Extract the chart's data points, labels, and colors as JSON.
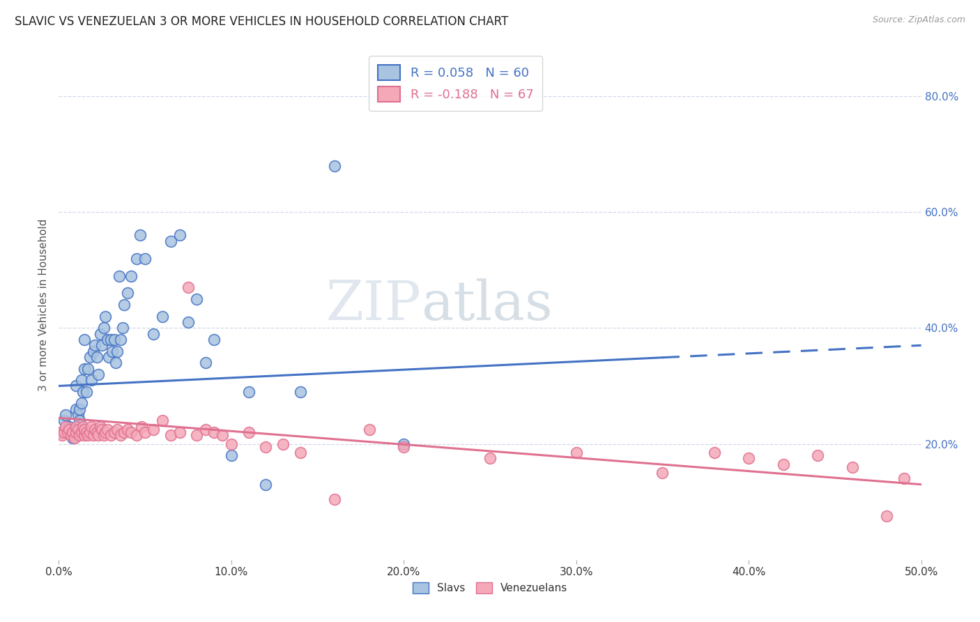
{
  "title": "SLAVIC VS VENEZUELAN 3 OR MORE VEHICLES IN HOUSEHOLD CORRELATION CHART",
  "source": "Source: ZipAtlas.com",
  "ylabel": "3 or more Vehicles in Household",
  "ylabel_right_ticks": [
    "20.0%",
    "40.0%",
    "60.0%",
    "80.0%"
  ],
  "ylabel_right_values": [
    0.2,
    0.4,
    0.6,
    0.8
  ],
  "xmin": 0.0,
  "xmax": 0.5,
  "ymin": 0.0,
  "ymax": 0.88,
  "legend_slavs_R": "R = 0.058",
  "legend_slavs_N": "N = 60",
  "legend_vene_R": "R = -0.188",
  "legend_vene_N": "N = 67",
  "slav_color": "#a8c4e0",
  "vene_color": "#f4a8b8",
  "slav_line_color": "#4472c4",
  "vene_line_color": "#e07090",
  "watermark_zip": "ZIP",
  "watermark_atlas": "atlas",
  "background_color": "#ffffff",
  "grid_color": "#d0d8e8",
  "slavs_x": [
    0.002,
    0.003,
    0.004,
    0.005,
    0.006,
    0.007,
    0.008,
    0.009,
    0.01,
    0.01,
    0.011,
    0.012,
    0.012,
    0.013,
    0.013,
    0.014,
    0.015,
    0.015,
    0.016,
    0.017,
    0.018,
    0.019,
    0.02,
    0.021,
    0.022,
    0.023,
    0.024,
    0.025,
    0.026,
    0.027,
    0.028,
    0.029,
    0.03,
    0.031,
    0.032,
    0.033,
    0.034,
    0.035,
    0.036,
    0.037,
    0.038,
    0.04,
    0.042,
    0.045,
    0.047,
    0.05,
    0.055,
    0.06,
    0.065,
    0.07,
    0.075,
    0.08,
    0.085,
    0.09,
    0.1,
    0.11,
    0.12,
    0.14,
    0.16,
    0.2
  ],
  "slavs_y": [
    0.22,
    0.24,
    0.25,
    0.22,
    0.23,
    0.22,
    0.21,
    0.225,
    0.3,
    0.26,
    0.25,
    0.24,
    0.26,
    0.27,
    0.31,
    0.29,
    0.38,
    0.33,
    0.29,
    0.33,
    0.35,
    0.31,
    0.36,
    0.37,
    0.35,
    0.32,
    0.39,
    0.37,
    0.4,
    0.42,
    0.38,
    0.35,
    0.38,
    0.36,
    0.38,
    0.34,
    0.36,
    0.49,
    0.38,
    0.4,
    0.44,
    0.46,
    0.49,
    0.52,
    0.56,
    0.52,
    0.39,
    0.42,
    0.55,
    0.56,
    0.41,
    0.45,
    0.34,
    0.38,
    0.18,
    0.29,
    0.13,
    0.29,
    0.68,
    0.2
  ],
  "vene_x": [
    0.001,
    0.002,
    0.003,
    0.004,
    0.005,
    0.006,
    0.007,
    0.008,
    0.009,
    0.01,
    0.01,
    0.011,
    0.012,
    0.013,
    0.014,
    0.015,
    0.015,
    0.016,
    0.017,
    0.018,
    0.019,
    0.02,
    0.021,
    0.022,
    0.023,
    0.024,
    0.025,
    0.026,
    0.027,
    0.028,
    0.03,
    0.032,
    0.034,
    0.036,
    0.038,
    0.04,
    0.042,
    0.045,
    0.048,
    0.05,
    0.055,
    0.06,
    0.065,
    0.07,
    0.075,
    0.08,
    0.085,
    0.09,
    0.095,
    0.1,
    0.11,
    0.12,
    0.13,
    0.14,
    0.16,
    0.18,
    0.2,
    0.25,
    0.3,
    0.35,
    0.38,
    0.4,
    0.42,
    0.44,
    0.46,
    0.48,
    0.49
  ],
  "vene_y": [
    0.22,
    0.215,
    0.22,
    0.23,
    0.22,
    0.225,
    0.215,
    0.22,
    0.21,
    0.22,
    0.23,
    0.225,
    0.215,
    0.22,
    0.23,
    0.215,
    0.225,
    0.22,
    0.215,
    0.22,
    0.23,
    0.215,
    0.225,
    0.22,
    0.215,
    0.23,
    0.225,
    0.215,
    0.22,
    0.225,
    0.215,
    0.22,
    0.225,
    0.215,
    0.22,
    0.225,
    0.22,
    0.215,
    0.23,
    0.22,
    0.225,
    0.24,
    0.215,
    0.22,
    0.47,
    0.215,
    0.225,
    0.22,
    0.215,
    0.2,
    0.22,
    0.195,
    0.2,
    0.185,
    0.105,
    0.225,
    0.195,
    0.175,
    0.185,
    0.15,
    0.185,
    0.175,
    0.165,
    0.18,
    0.16,
    0.075,
    0.14
  ]
}
